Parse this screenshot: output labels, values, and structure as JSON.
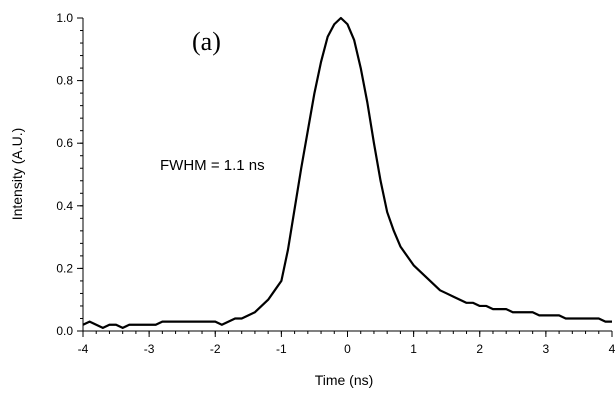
{
  "chart_data": {
    "type": "line",
    "title": "",
    "panel_label": "(a)",
    "xlabel": "Time (ns)",
    "ylabel": "Intensity (A.U.)",
    "annotation": "FWHM = 1.1 ns",
    "xlim": [
      -4,
      4
    ],
    "ylim": [
      0,
      1.0
    ],
    "x_ticks": [
      -4,
      -3,
      -2,
      -1,
      0,
      1,
      2,
      3,
      4
    ],
    "x_tick_labels": [
      "-4",
      "-3",
      "-2",
      "-1",
      "0",
      "1",
      "2",
      "3",
      "4"
    ],
    "y_ticks": [
      0.0,
      0.2,
      0.4,
      0.6,
      0.8,
      1.0
    ],
    "y_tick_labels": [
      "0.0",
      "0.2",
      "0.4",
      "0.6",
      "0.8",
      "1.0"
    ],
    "grid": false,
    "line_color": "#000000",
    "series": [
      {
        "x": [
          -4.0,
          -3.9,
          -3.8,
          -3.7,
          -3.6,
          -3.5,
          -3.4,
          -3.3,
          -3.2,
          -3.1,
          -3.0,
          -2.9,
          -2.8,
          -2.7,
          -2.6,
          -2.5,
          -2.4,
          -2.3,
          -2.2,
          -2.1,
          -2.0,
          -1.9,
          -1.8,
          -1.7,
          -1.6,
          -1.5,
          -1.4,
          -1.3,
          -1.2,
          -1.1,
          -1.0,
          -0.9,
          -0.8,
          -0.7,
          -0.6,
          -0.5,
          -0.4,
          -0.3,
          -0.2,
          -0.1,
          0.0,
          0.1,
          0.2,
          0.3,
          0.4,
          0.5,
          0.6,
          0.7,
          0.8,
          0.9,
          1.0,
          1.1,
          1.2,
          1.3,
          1.4,
          1.5,
          1.6,
          1.7,
          1.8,
          1.9,
          2.0,
          2.1,
          2.2,
          2.3,
          2.4,
          2.5,
          2.6,
          2.7,
          2.8,
          2.9,
          3.0,
          3.1,
          3.2,
          3.3,
          3.4,
          3.5,
          3.6,
          3.7,
          3.8,
          3.9,
          4.0
        ],
        "y": [
          0.02,
          0.03,
          0.02,
          0.01,
          0.02,
          0.02,
          0.01,
          0.02,
          0.02,
          0.02,
          0.02,
          0.02,
          0.03,
          0.03,
          0.03,
          0.03,
          0.03,
          0.03,
          0.03,
          0.03,
          0.03,
          0.02,
          0.03,
          0.04,
          0.04,
          0.05,
          0.06,
          0.08,
          0.1,
          0.13,
          0.16,
          0.26,
          0.39,
          0.52,
          0.64,
          0.76,
          0.86,
          0.94,
          0.98,
          1.0,
          0.98,
          0.93,
          0.84,
          0.73,
          0.6,
          0.48,
          0.38,
          0.32,
          0.27,
          0.24,
          0.21,
          0.19,
          0.17,
          0.15,
          0.13,
          0.12,
          0.11,
          0.1,
          0.09,
          0.09,
          0.08,
          0.08,
          0.07,
          0.07,
          0.07,
          0.06,
          0.06,
          0.06,
          0.06,
          0.05,
          0.05,
          0.05,
          0.05,
          0.04,
          0.04,
          0.04,
          0.04,
          0.04,
          0.04,
          0.03,
          0.03
        ]
      }
    ]
  }
}
